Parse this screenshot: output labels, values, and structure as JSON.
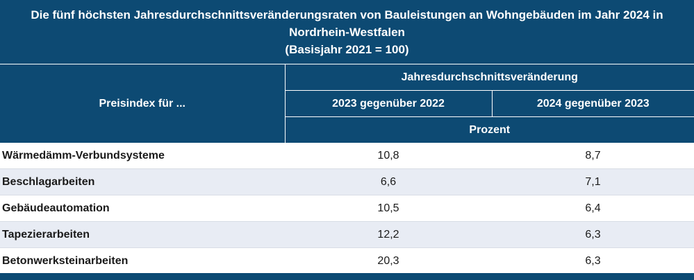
{
  "title": {
    "line1": "Die fünf höchsten Jahresdurchschnittsveränderungsraten von Bauleistungen an Wohngebäuden im Jahr 2024 in",
    "line2": "Nordrhein-Westfalen",
    "line3": "(Basisjahr 2021 = 100)"
  },
  "header": {
    "stub": "Preisindex für ...",
    "group": "Jahresdurchschnittsveränderung",
    "col1": "2023 gegenüber 2022",
    "col2": "2024 gegenüber 2023",
    "unit": "Prozent"
  },
  "rows": [
    {
      "label": "Wärmedämm-Verbundsysteme",
      "v2023": "10,8",
      "v2024": "8,7"
    },
    {
      "label": "Beschlagarbeiten",
      "v2023": "6,6",
      "v2024": "7,1"
    },
    {
      "label": "Gebäudeautomation",
      "v2023": "10,5",
      "v2024": "6,4"
    },
    {
      "label": "Tapezierarbeiten",
      "v2023": "12,2",
      "v2024": "6,3"
    },
    {
      "label": "Betonwerksteinarbeiten",
      "v2023": "20,3",
      "v2024": "6,3"
    }
  ]
}
